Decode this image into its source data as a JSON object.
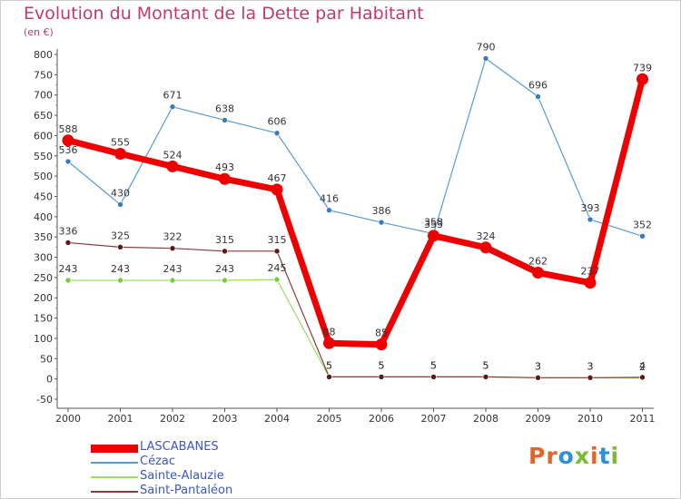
{
  "title": "Evolution du Montant de la Dette par Habitant",
  "subtitle": "(en €)",
  "logo": {
    "text": "Proxiti",
    "letters": [
      "P",
      "r",
      "o",
      "x",
      "i",
      "t",
      "i"
    ],
    "colors": [
      "#e8632a",
      "#e8632a",
      "#2f8fd8",
      "#7cba2f",
      "#e8632a",
      "#2f8fd8",
      "#7cba2f"
    ]
  },
  "chart_data": {
    "type": "line",
    "title": "Evolution du Montant de la Dette par Habitant",
    "ylabel": "(en €)",
    "xlabel": "",
    "categories": [
      "2000",
      "2001",
      "2002",
      "2003",
      "2004",
      "2005",
      "2006",
      "2007",
      "2008",
      "2009",
      "2010",
      "2011"
    ],
    "ylim": [
      -50,
      800
    ],
    "yticks": [
      -50,
      0,
      50,
      100,
      150,
      200,
      250,
      300,
      350,
      400,
      450,
      500,
      550,
      600,
      650,
      700,
      750,
      800
    ],
    "grid": false,
    "legend_position": "bottom-left",
    "series": [
      {
        "name": "LASCABANES",
        "color": "#ee0000",
        "markerColor": "#ee0000",
        "values": [
          588,
          555,
          524,
          493,
          467,
          88,
          85,
          353,
          324,
          262,
          237,
          739
        ]
      },
      {
        "name": "Cézac",
        "color": "#5b9bd5",
        "markerColor": "#3a7bbf",
        "values": [
          536,
          430,
          671,
          638,
          606,
          416,
          386,
          358,
          790,
          696,
          393,
          352
        ]
      },
      {
        "name": "Sainte-Alauzie",
        "color": "#99dd66",
        "markerColor": "#77cc44",
        "values": [
          243,
          243,
          243,
          243,
          245,
          5,
          5,
          5,
          5,
          3,
          3,
          2
        ]
      },
      {
        "name": "Saint-Pantaléon",
        "color": "#8b3a3a",
        "markerColor": "#5a1a1a",
        "values": [
          336,
          325,
          322,
          315,
          315,
          5,
          5,
          5,
          5,
          3,
          3,
          4
        ]
      }
    ]
  }
}
